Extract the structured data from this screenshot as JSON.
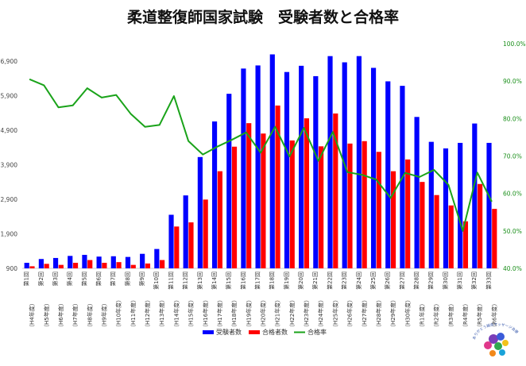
{
  "chart_data": {
    "type": "bar",
    "title": "柔道整復師国家試験　受験者数と合格率",
    "categories": [
      {
        "round": "第1回",
        "era": "（H4年度）"
      },
      {
        "round": "第2回",
        "era": "（H5年度）"
      },
      {
        "round": "第3回",
        "era": "（H6年度）"
      },
      {
        "round": "第4回",
        "era": "（H7年度）"
      },
      {
        "round": "第5回",
        "era": "（H8年度）"
      },
      {
        "round": "第6回",
        "era": "（H9年度）"
      },
      {
        "round": "第7回",
        "era": "（H10年度）"
      },
      {
        "round": "第8回",
        "era": "（H11年度）"
      },
      {
        "round": "第9回",
        "era": "（H12年度）"
      },
      {
        "round": "第10回",
        "era": "（H13年度）"
      },
      {
        "round": "第11回",
        "era": "（H14年度）"
      },
      {
        "round": "第12回",
        "era": "（H15年度）"
      },
      {
        "round": "第13回",
        "era": "（H16年度）"
      },
      {
        "round": "第14回",
        "era": "（H17年度）"
      },
      {
        "round": "第15回",
        "era": "（H18年度）"
      },
      {
        "round": "第16回",
        "era": "（H19年度）"
      },
      {
        "round": "第17回",
        "era": "（H20年度）"
      },
      {
        "round": "第18回",
        "era": "（H21年度）"
      },
      {
        "round": "第19回",
        "era": "（H22年度）"
      },
      {
        "round": "第20回",
        "era": "（H23年度）"
      },
      {
        "round": "第21回",
        "era": "（H24年度）"
      },
      {
        "round": "第22回",
        "era": "（H25年度）"
      },
      {
        "round": "第23回",
        "era": "（H26年度）"
      },
      {
        "round": "第24回",
        "era": "（H27年度）"
      },
      {
        "round": "第25回",
        "era": "（H28年度）"
      },
      {
        "round": "第26回",
        "era": "（H29年度）"
      },
      {
        "round": "第27回",
        "era": "（H30年度）"
      },
      {
        "round": "第28回",
        "era": "（R1年度）"
      },
      {
        "round": "第29回",
        "era": "（R2年度）"
      },
      {
        "round": "第30回",
        "era": "（R3年度）"
      },
      {
        "round": "第31回",
        "era": "（R4年度）"
      },
      {
        "round": "第32回",
        "era": "（R5年度）"
      },
      {
        "round": "第33回",
        "era": "（R6年度）"
      }
    ],
    "series": [
      {
        "name": "受験者数",
        "type": "bar",
        "axis": "left",
        "color": "#0000ff",
        "values": [
          1060,
          1170,
          1200,
          1260,
          1290,
          1240,
          1250,
          1230,
          1320,
          1460,
          2450,
          3010,
          4120,
          5150,
          5950,
          6680,
          6770,
          7090,
          6580,
          6760,
          6460,
          7040,
          6860,
          7040,
          6700,
          6310,
          6180,
          5280,
          4560,
          4370,
          4530,
          5090,
          4530
        ]
      },
      {
        "name": "合格者数",
        "type": "bar",
        "axis": "left",
        "color": "#ff0000",
        "values": [
          960,
          1030,
          1000,
          1060,
          1140,
          1060,
          1080,
          1000,
          1040,
          1140,
          2110,
          2230,
          2890,
          3710,
          4420,
          5100,
          4800,
          5610,
          4600,
          5240,
          4430,
          5380,
          4510,
          4580,
          4270,
          3710,
          4050,
          3400,
          3020,
          2720,
          2260,
          3340,
          2620
        ]
      },
      {
        "name": "合格率",
        "type": "line",
        "axis": "right",
        "color": "#1aa31a",
        "values": [
          90.5,
          88.9,
          83.0,
          83.5,
          88.1,
          85.6,
          86.3,
          81.3,
          77.8,
          78.3,
          86.0,
          74.0,
          70.4,
          72.5,
          74.3,
          76.3,
          70.9,
          77.8,
          69.9,
          77.5,
          68.7,
          76.4,
          65.7,
          65.0,
          63.7,
          58.8,
          65.5,
          64.4,
          66.3,
          62.3,
          50.0,
          65.6,
          57.8
        ]
      }
    ],
    "y_left": {
      "min": 900,
      "max": 7400,
      "ticks": [
        "900",
        "1,900",
        "2,900",
        "3,900",
        "4,900",
        "5,900",
        "6,900"
      ],
      "tick_values": [
        900,
        1900,
        2900,
        3900,
        4900,
        5900,
        6900
      ]
    },
    "y_right": {
      "min": 40,
      "max": 100,
      "ticks": [
        "40.0%",
        "50.0%",
        "60.0%",
        "70.0%",
        "80.0%",
        "90.0%",
        "100.0%"
      ],
      "tick_values": [
        40,
        50,
        60,
        70,
        80,
        90,
        100
      ]
    },
    "grid": false,
    "legend": "bottom-center"
  },
  "logo": {
    "lines": [
      "ありがとう鍼灸マッサージ治療院"
    ]
  }
}
